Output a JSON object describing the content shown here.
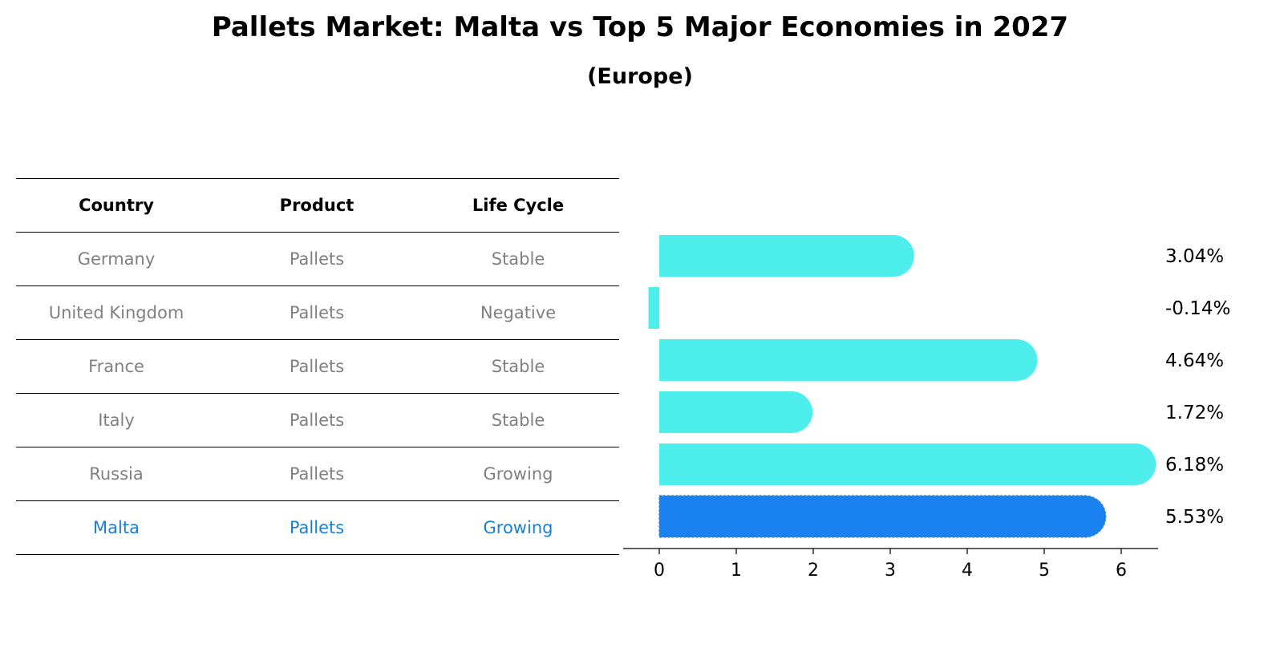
{
  "title": "Pallets Market: Malta vs Top 5 Major Economies in 2027",
  "subtitle": "(Europe)",
  "table": {
    "headers": [
      "Country",
      "Product",
      "Life Cycle"
    ],
    "rows": [
      [
        "Germany",
        "Pallets",
        "Stable"
      ],
      [
        "United Kingdom",
        "Pallets",
        "Negative"
      ],
      [
        "France",
        "Pallets",
        "Stable"
      ],
      [
        "Italy",
        "Pallets",
        "Stable"
      ],
      [
        "Russia",
        "Pallets",
        "Growing"
      ],
      [
        "Malta",
        "Pallets",
        "Growing"
      ]
    ],
    "highlight_row": 5
  },
  "colors": {
    "bar": "#4eeeec",
    "highlight_bar": "#1a82f0",
    "highlight_text": "#1a7fd6",
    "muted_text": "#808080"
  },
  "chart_data": {
    "type": "bar",
    "orientation": "horizontal",
    "categories": [
      "Germany",
      "United Kingdom",
      "France",
      "Italy",
      "Russia",
      "Malta"
    ],
    "values": [
      3.04,
      -0.14,
      4.64,
      1.72,
      6.18,
      5.53
    ],
    "value_labels": [
      "3.04%",
      "-0.14%",
      "4.64%",
      "1.72%",
      "6.18%",
      "5.53%"
    ],
    "highlight_index": 5,
    "xticks": [
      "0",
      "1",
      "2",
      "3",
      "4",
      "5",
      "6"
    ],
    "xlim": [
      -0.47,
      6.5
    ],
    "grid": false
  }
}
